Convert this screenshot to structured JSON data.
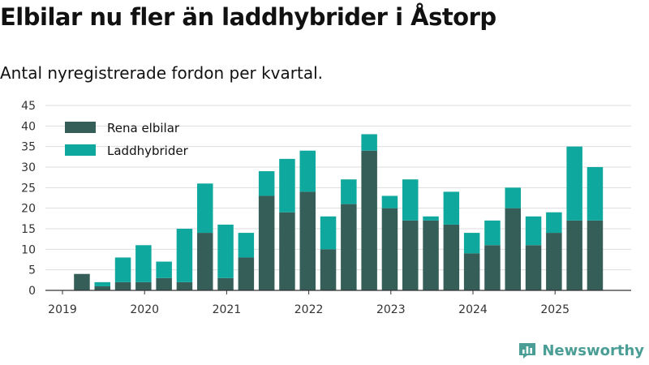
{
  "title": "Elbilar nu fler än laddhybrider i Åstorp",
  "subtitle": "Antal nyregistrerade fordon per kvartal.",
  "brand": {
    "name": "Newsworthy",
    "icon": "newsworthy-logo-icon"
  },
  "colors": {
    "electric": "#355e58",
    "hybrid": "#0fa89e",
    "grid": "#dddddd",
    "axis": "#333333",
    "brand": "#4a9e95"
  },
  "chart_data": {
    "type": "bar",
    "stacked": true,
    "title": "Elbilar nu fler än laddhybrider i Åstorp",
    "subtitle": "Antal nyregistrerade fordon per kvartal.",
    "xlabel": "",
    "ylabel": "",
    "ylim": [
      0,
      45
    ],
    "yticks": [
      0,
      5,
      10,
      15,
      20,
      25,
      30,
      35,
      40,
      45
    ],
    "grid": true,
    "legend_position": "top-left",
    "categories": [
      "2019 Q1",
      "2019 Q2",
      "2019 Q3",
      "2019 Q4",
      "2020 Q1",
      "2020 Q2",
      "2020 Q3",
      "2020 Q4",
      "2021 Q1",
      "2021 Q2",
      "2021 Q3",
      "2021 Q4",
      "2022 Q1",
      "2022 Q2",
      "2022 Q3",
      "2022 Q4",
      "2023 Q1",
      "2023 Q2",
      "2023 Q3",
      "2023 Q4",
      "2024 Q1",
      "2024 Q2",
      "2024 Q3",
      "2024 Q4",
      "2025 Q1",
      "2025 Q2",
      "2025 Q3"
    ],
    "year_labels": [
      {
        "label": "2019",
        "index": 0
      },
      {
        "label": "2020",
        "index": 4
      },
      {
        "label": "2021",
        "index": 8
      },
      {
        "label": "2022",
        "index": 12
      },
      {
        "label": "2023",
        "index": 16
      },
      {
        "label": "2024",
        "index": 20
      },
      {
        "label": "2025",
        "index": 24
      }
    ],
    "series": [
      {
        "name": "Rena elbilar",
        "color": "#355e58",
        "values": [
          0,
          4,
          1,
          2,
          2,
          3,
          2,
          14,
          3,
          8,
          23,
          19,
          24,
          10,
          21,
          34,
          20,
          17,
          17,
          16,
          9,
          11,
          20,
          11,
          14,
          17,
          17
        ]
      },
      {
        "name": "Laddhybrider",
        "color": "#0fa89e",
        "values": [
          0,
          0,
          1,
          6,
          9,
          4,
          13,
          12,
          13,
          6,
          6,
          13,
          10,
          8,
          6,
          4,
          3,
          10,
          1,
          8,
          5,
          6,
          5,
          7,
          5,
          18,
          13
        ]
      }
    ]
  }
}
